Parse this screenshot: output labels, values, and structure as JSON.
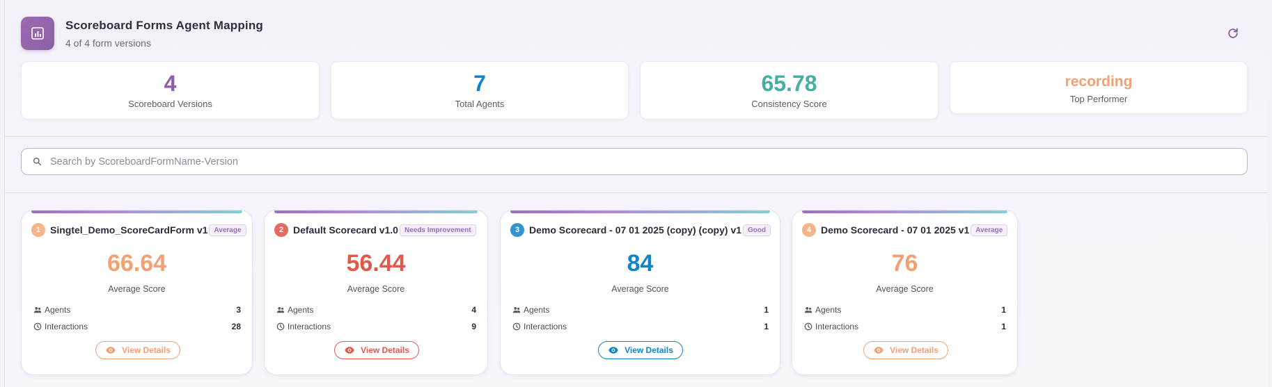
{
  "header": {
    "title": "Scoreboard Forms Agent Mapping",
    "subtitle": "4 of 4 form versions",
    "app_icon": "bar-chart-icon",
    "refresh_icon": "refresh-icon"
  },
  "stats": [
    {
      "value": "4",
      "label": "Scoreboard Versions",
      "color": "#8e5fa8"
    },
    {
      "value": "7",
      "label": "Total Agents",
      "color": "#1284c4"
    },
    {
      "value": "65.78",
      "label": "Consistency Score",
      "color": "#44b0a0"
    },
    {
      "value": "recording",
      "label": "Top Performer",
      "color": "#f2a074"
    }
  ],
  "search": {
    "placeholder": "Search by ScoreboardFormName-Version",
    "value": "",
    "icon": "search-icon"
  },
  "labels": {
    "average_score": "Average Score",
    "agents": "Agents",
    "interactions": "Interactions",
    "view_details": "View Details"
  },
  "cards": [
    {
      "rank": "1",
      "title": "Singtel_Demo_ScoreCardForm v1",
      "badge": "Average",
      "score": "66.64",
      "agents": "3",
      "interactions": "28",
      "color": "#f2a074",
      "rank_color": "#f5b48a",
      "badge_color": "#9a6cc0"
    },
    {
      "rank": "2",
      "title": "Default Scorecard v1.0",
      "badge": "Needs Improvement",
      "score": "56.44",
      "agents": "4",
      "interactions": "9",
      "color": "#e0584c",
      "rank_color": "#e66a60",
      "badge_color": "#9a6cc0"
    },
    {
      "rank": "3",
      "title": "Demo Scorecard - 07 01 2025 (copy) (copy) v1",
      "badge": "Good",
      "score": "84",
      "agents": "1",
      "interactions": "1",
      "color": "#1284c4",
      "rank_color": "#2f95d0",
      "badge_color": "#9a6cc0"
    },
    {
      "rank": "4",
      "title": "Demo Scorecard - 07 01 2025 v1",
      "badge": "Average",
      "score": "76",
      "agents": "1",
      "interactions": "1",
      "color": "#f2a074",
      "rank_color": "#f5b48a",
      "badge_color": "#9a6cc0"
    }
  ]
}
